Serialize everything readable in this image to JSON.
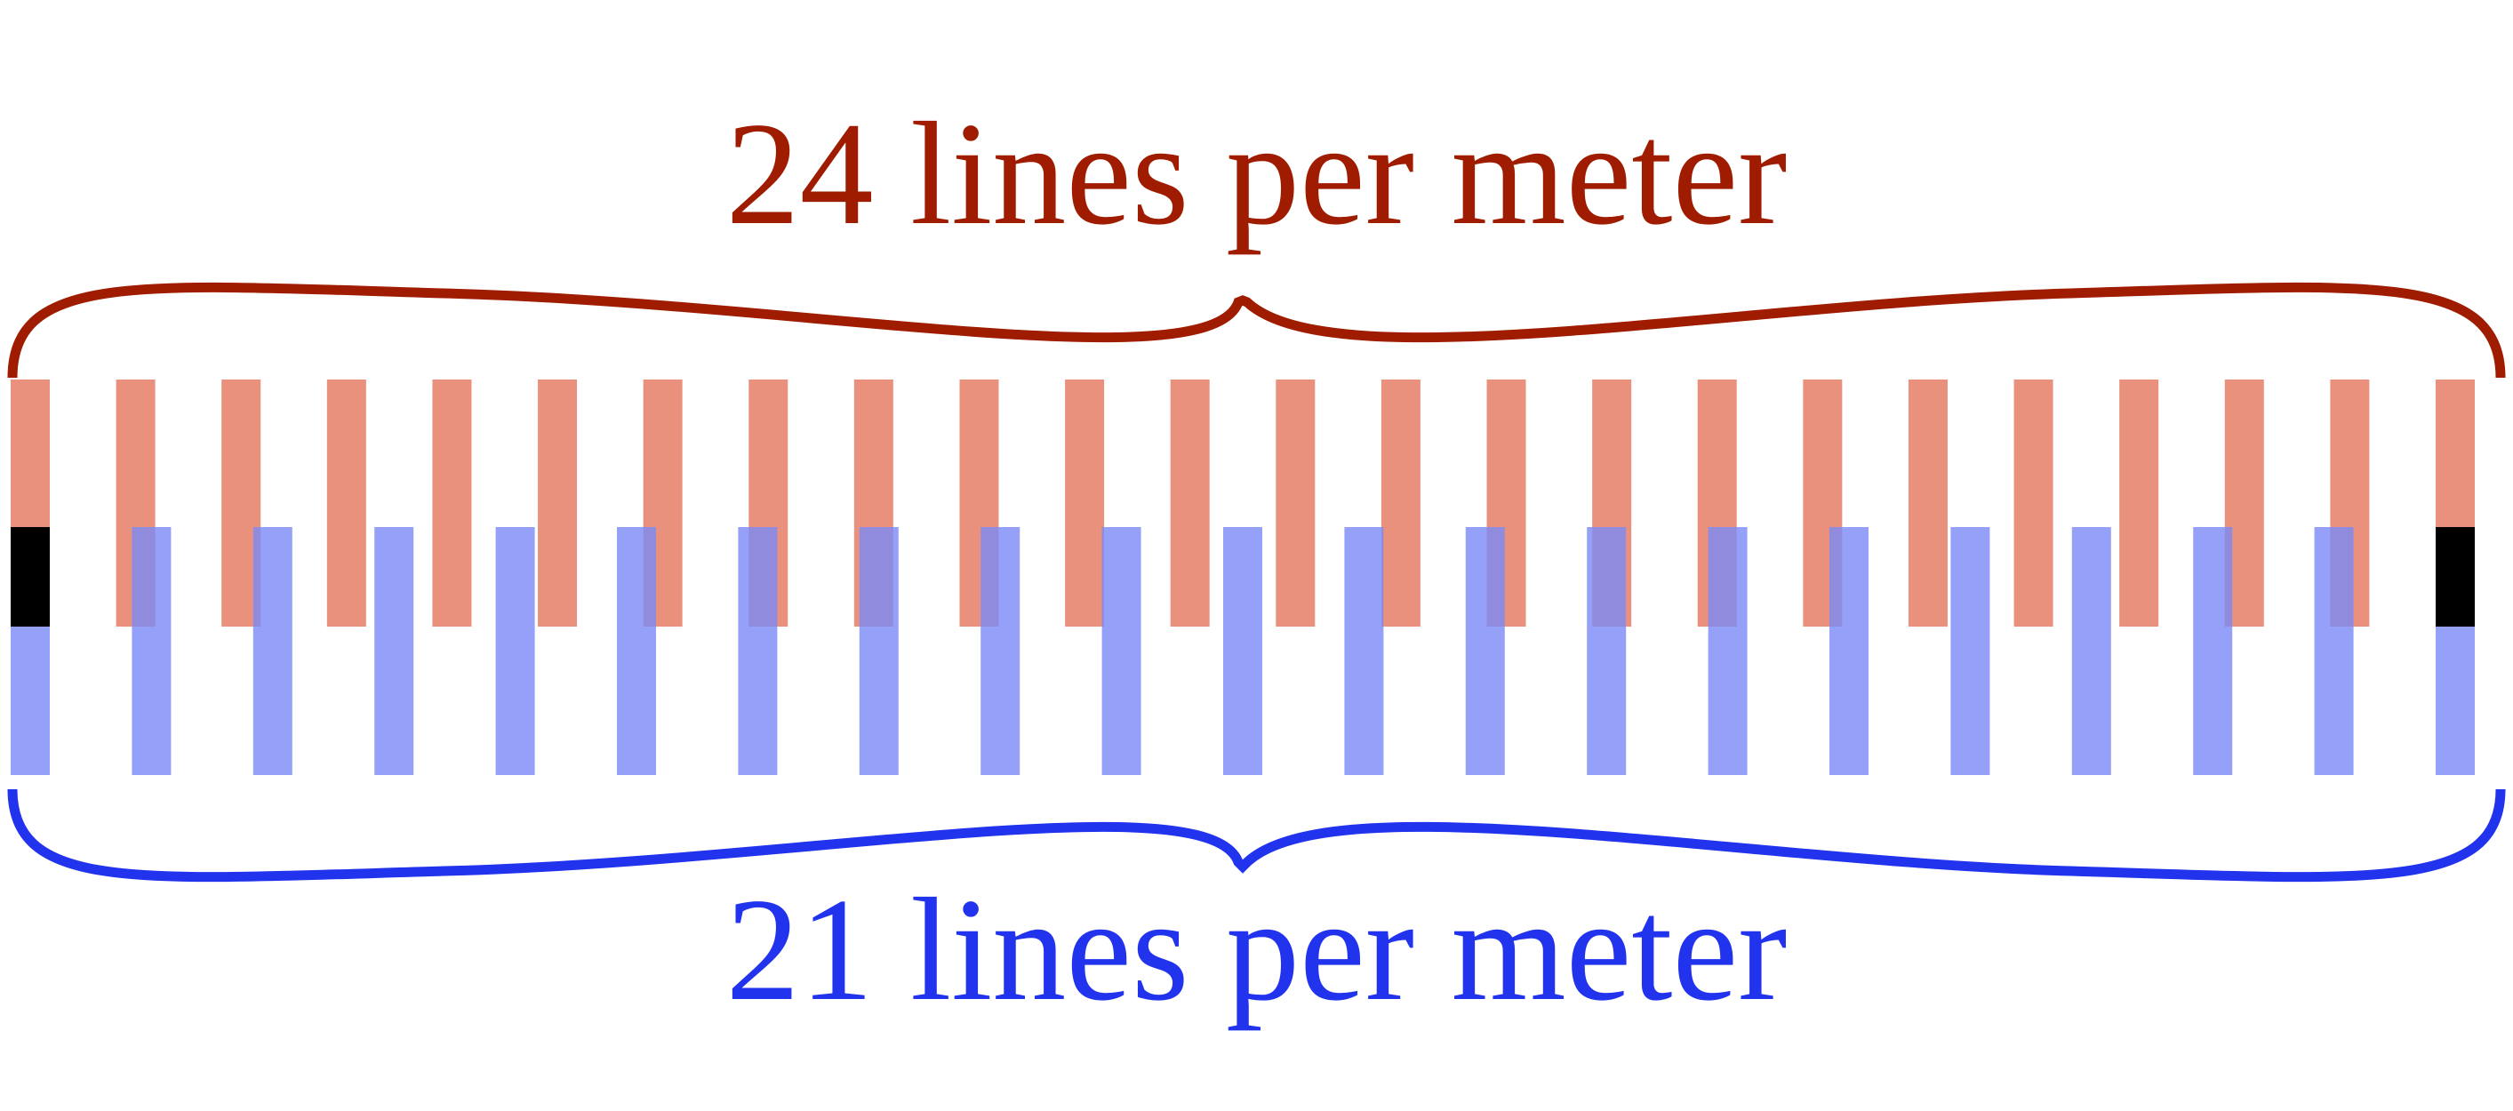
{
  "top_grating": {
    "label": "24 lines per meter",
    "line_count": 24,
    "color": "#a01c00",
    "bar_color": "#e88570"
  },
  "bottom_grating": {
    "label": "21 lines per meter",
    "line_count": 21,
    "color": "#2233ee",
    "bar_color": "#7b89f6"
  },
  "coincidence_color": "#000000"
}
